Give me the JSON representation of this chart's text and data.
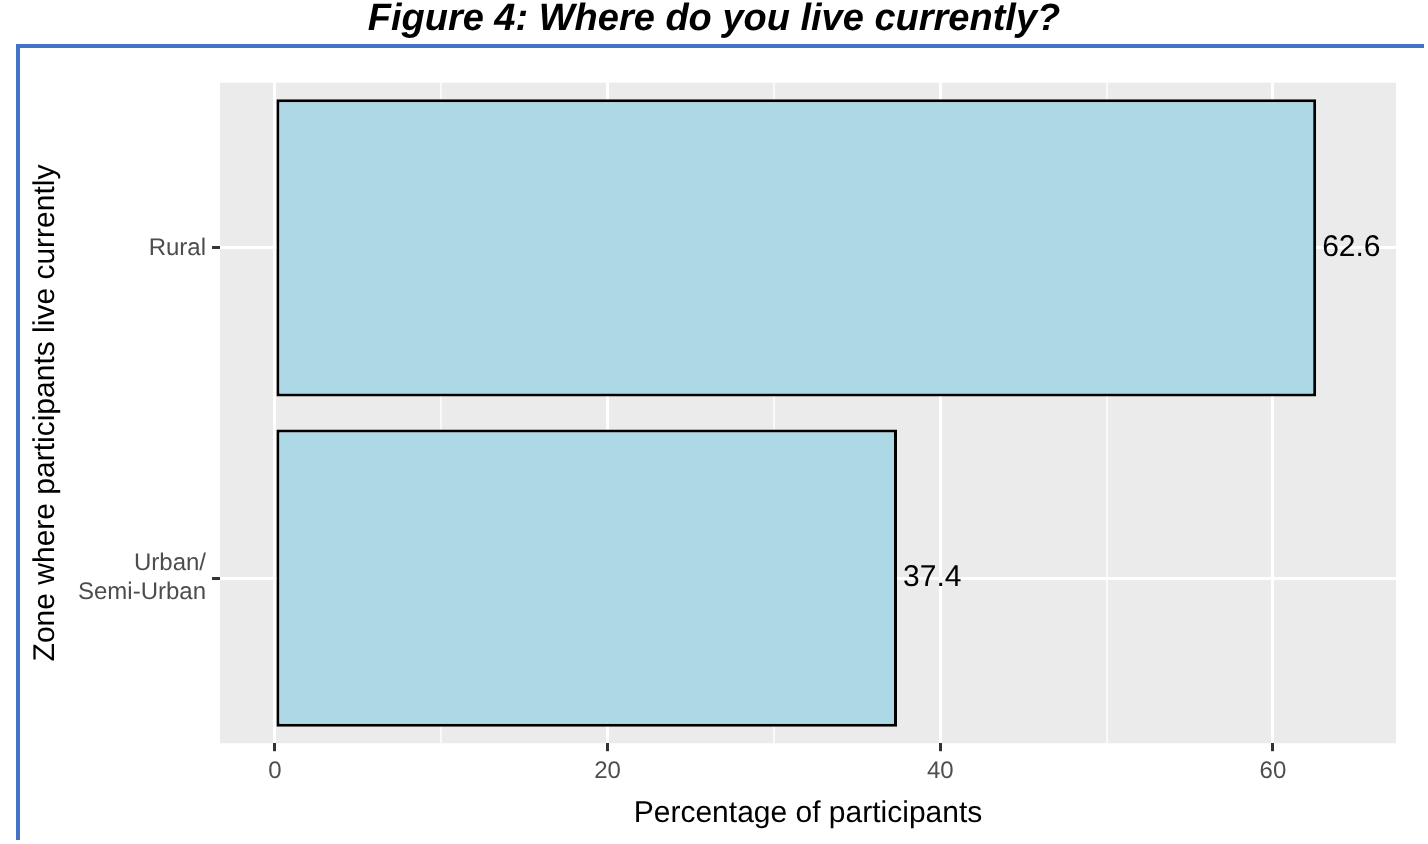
{
  "chart_data": {
    "type": "bar",
    "orientation": "horizontal",
    "title": "Figure 4: Where do you live currently?",
    "xlabel": "Percentage of participants",
    "ylabel": "Zone where participants live currently",
    "categories": [
      "Rural",
      "Urban/\nSemi-Urban"
    ],
    "values": [
      62.6,
      37.4
    ],
    "color": "#add8e6",
    "data_labels": true,
    "xlim": [
      -3.3,
      67.4
    ],
    "xticks": [
      0,
      {
        "value": 10,
        "label": null
      },
      20,
      {
        "value": 30,
        "label": null
      },
      40,
      {
        "value": 50,
        "label": null
      },
      60
    ],
    "grid": true,
    "legend": false
  }
}
